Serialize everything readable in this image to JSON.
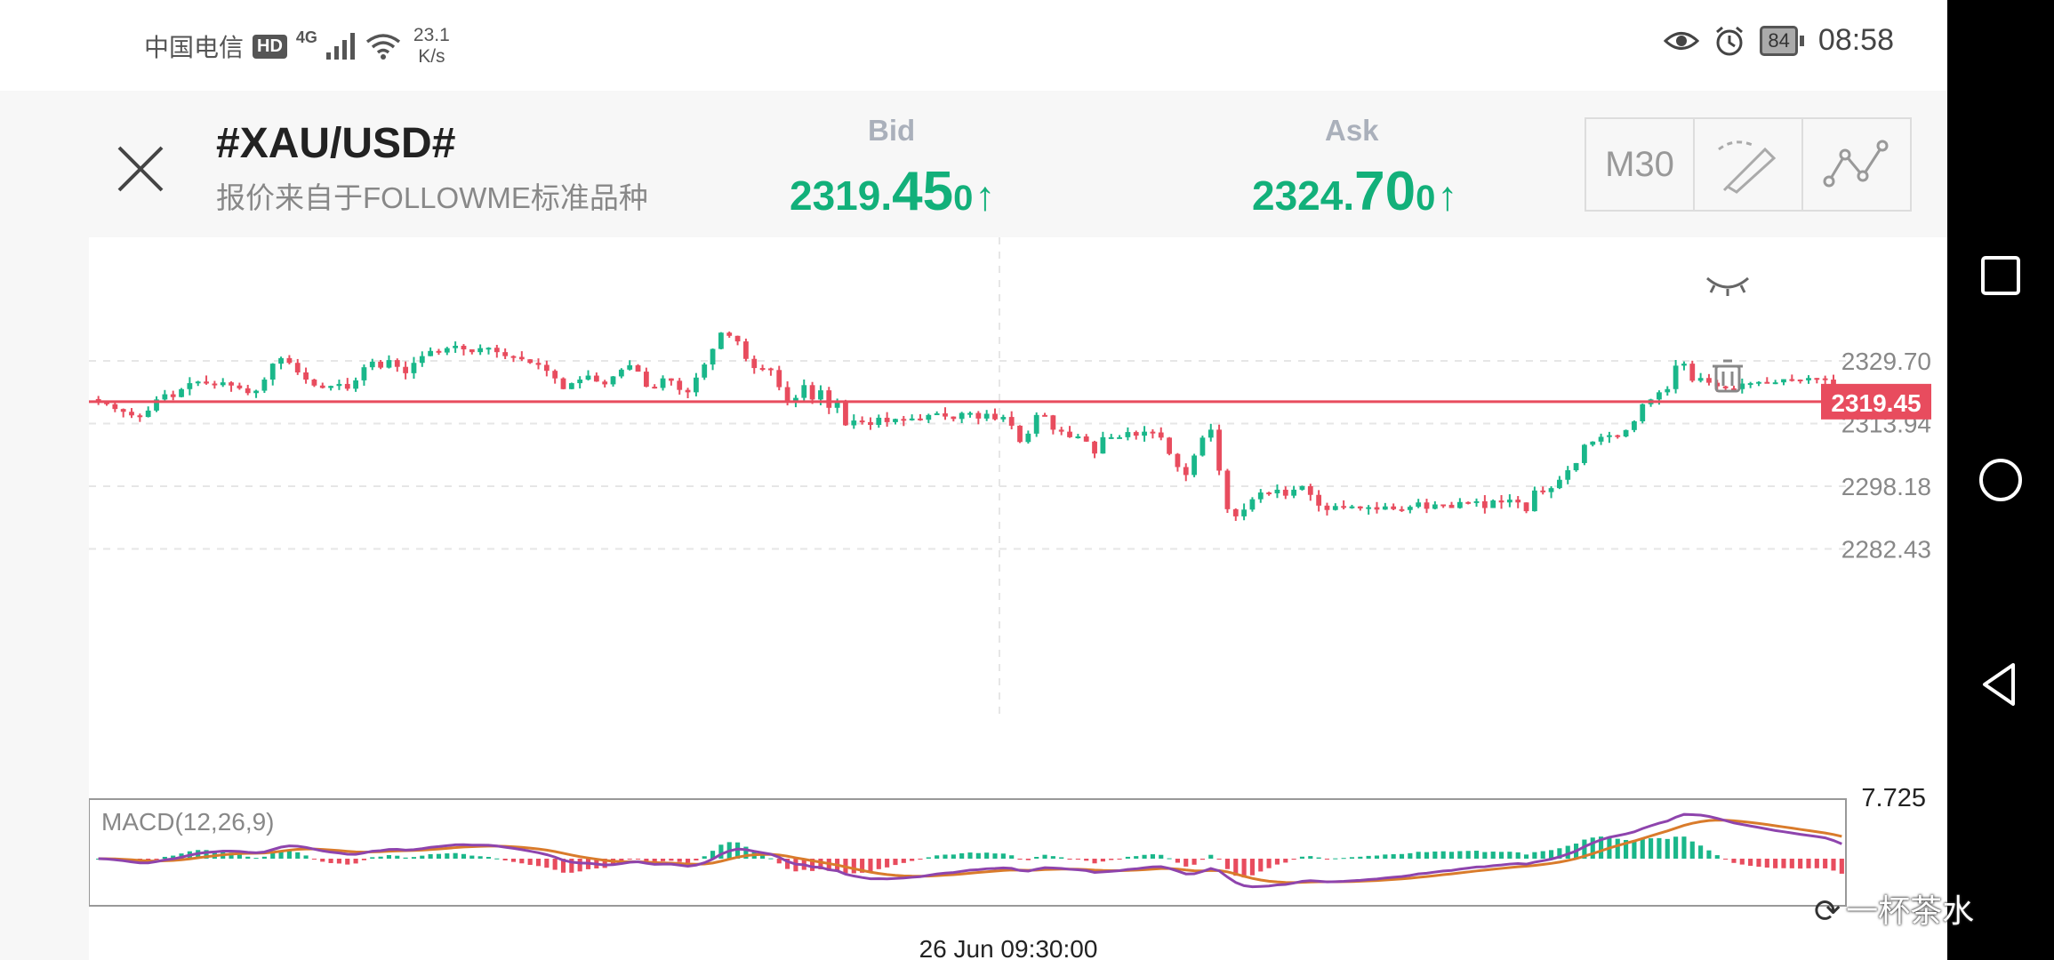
{
  "status_bar": {
    "carrier": "中国电信",
    "hd": "HD",
    "network": "4G",
    "speed_value": "23.1",
    "speed_unit": "K/s",
    "battery": "84",
    "time": "08:58"
  },
  "header": {
    "symbol": "#XAU/USD#",
    "subtitle": "报价来自于FOLLOWME标准品种",
    "bid_label": "Bid",
    "bid_prefix": "2319.",
    "bid_big": "45",
    "bid_small": "0",
    "ask_label": "Ask",
    "ask_prefix": "2324.",
    "ask_big": "70",
    "ask_small": "0",
    "arrow": "↑",
    "timeframe": "M30"
  },
  "chart_data": {
    "type": "candlestick",
    "price_levels": [
      "2329.70",
      "2313.94",
      "2298.18",
      "2282.43"
    ],
    "current_price": "2319.45",
    "macd_label": "MACD(12,26,9)",
    "macd_top": "7.725",
    "time_label": "26 Jun 09:30:00",
    "colors": {
      "up": "#1ab78a",
      "down": "#e84c5e",
      "price_line": "#e84c5e",
      "dif": "#8e44ad",
      "dea": "#d97b2b"
    },
    "closes": [
      2319.5,
      2318.8,
      2317.6,
      2316.9,
      2316.0,
      2315.6,
      2317.2,
      2320.0,
      2321.3,
      2320.6,
      2322.6,
      2324.1,
      2324.5,
      2324.0,
      2323.6,
      2324.3,
      2323.5,
      2322.8,
      2321.6,
      2322.2,
      2325.0,
      2329.0,
      2330.4,
      2329.2,
      2326.8,
      2325.0,
      2323.5,
      2322.9,
      2323.4,
      2323.9,
      2322.7,
      2324.8,
      2328.1,
      2329.5,
      2328.0,
      2329.9,
      2328.2,
      2326.6,
      2329.2,
      2330.9,
      2332.2,
      2331.8,
      2332.9,
      2333.5,
      2332.6,
      2331.9,
      2332.9,
      2333.0,
      2331.9,
      2330.9,
      2330.7,
      2330.1,
      2329.2,
      2328.7,
      2327.2,
      2325.3,
      2322.6,
      2324.1,
      2325.0,
      2326.0,
      2324.5,
      2323.8,
      2325.8,
      2327.5,
      2328.6,
      2327.0,
      2323.2,
      2322.9,
      2325.3,
      2324.7,
      2322.4,
      2321.8,
      2325.5,
      2328.8,
      2332.7,
      2336.8,
      2336.0,
      2334.6,
      2330.2,
      2327.9,
      2327.8,
      2327.4,
      2323.1,
      2319.6,
      2320.4,
      2323.6,
      2320.0,
      2322.3,
      2317.9,
      2319.2,
      2313.5,
      2314.7,
      2314.3,
      2313.6,
      2315.4,
      2314.3,
      2315.1,
      2314.9,
      2315.2,
      2314.9,
      2316.1,
      2316.5,
      2315.7,
      2315.1,
      2316.6,
      2316.6,
      2315.2,
      2316.4,
      2315.0,
      2315.6,
      2313.4,
      2309.3,
      2311.4,
      2316.1,
      2316.0,
      2312.4,
      2311.9,
      2310.5,
      2310.7,
      2309.4,
      2306.4,
      2310.5,
      2310.5,
      2310.5,
      2311.8,
      2310.9,
      2311.9,
      2311.7,
      2310.4,
      2306.3,
      2303.0,
      2301.0,
      2305.9,
      2310.4,
      2312.4,
      2302.1,
      2292.4,
      2290.6,
      2292.3,
      2294.9,
      2296.6,
      2296.4,
      2297.3,
      2295.8,
      2297.3,
      2298.2,
      2296.0,
      2293.3,
      2292.2,
      2293.2,
      2292.9,
      2293.1,
      2292.6,
      2292.9,
      2292.3,
      2293.1,
      2292.4,
      2292.2,
      2293.0,
      2294.1,
      2292.5,
      2293.6,
      2293.5,
      2292.7,
      2294.2,
      2294.1,
      2294.4,
      2292.7,
      2294.6,
      2294.1,
      2294.8,
      2294.1,
      2291.9,
      2297.1,
      2296.7,
      2297.7,
      2299.8,
      2302.2,
      2304.0,
      2308.6,
      2309.4,
      2310.6,
      2311.0,
      2310.7,
      2312.3,
      2314.5,
      2318.8,
      2320.0,
      2321.8,
      2322.6,
      2328.5,
      2329.0,
      2324.7,
      2325.4,
      2324.2,
      2323.3,
      2322.8,
      2322.6,
      2324.0,
      2324.1,
      2324.4,
      2324.3,
      2324.3,
      2325.1,
      2325.0,
      2324.8,
      2325.4,
      2325.3,
      2325.0,
      2322.1,
      2319.5
    ]
  },
  "watermark": {
    "text": "一杯茶水"
  }
}
